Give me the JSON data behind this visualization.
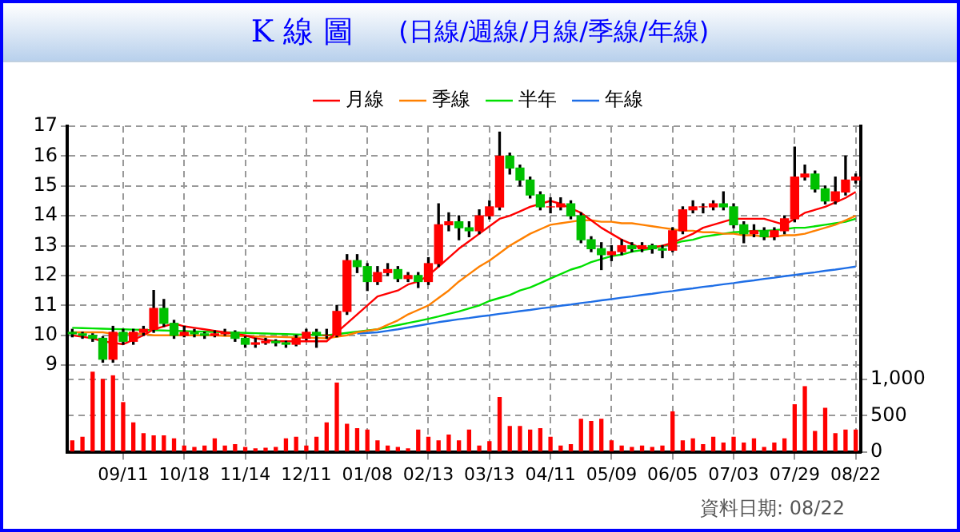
{
  "chart_data": {
    "type": "candlestick",
    "title": "K 線 圖",
    "subtitle": "(日線/週線/月線/季線/年線)",
    "categories": [
      null,
      null,
      null,
      null,
      null,
      "09/11",
      null,
      null,
      null,
      null,
      null,
      "10/18",
      null,
      null,
      null,
      null,
      null,
      "11/14",
      null,
      null,
      null,
      null,
      null,
      "12/11",
      null,
      null,
      null,
      null,
      null,
      "01/08",
      null,
      null,
      null,
      null,
      null,
      "02/13",
      null,
      null,
      null,
      null,
      null,
      "03/13",
      null,
      null,
      null,
      null,
      null,
      "04/11",
      null,
      null,
      null,
      null,
      null,
      "05/09",
      null,
      null,
      null,
      null,
      null,
      "06/05",
      null,
      null,
      null,
      null,
      null,
      "07/03",
      null,
      null,
      null,
      null,
      null,
      "07/29",
      null,
      null,
      null,
      null,
      null,
      "08/22"
    ],
    "ohlc": [
      [
        10.1,
        10.2,
        9.95,
        10.05
      ],
      [
        10.05,
        10.1,
        9.9,
        10.0
      ],
      [
        10.0,
        10.05,
        9.8,
        9.9
      ],
      [
        9.9,
        9.95,
        9.1,
        9.2
      ],
      [
        9.2,
        10.3,
        9.1,
        10.1
      ],
      [
        10.1,
        10.2,
        9.7,
        9.8
      ],
      [
        9.8,
        10.2,
        9.7,
        10.1
      ],
      [
        10.1,
        10.3,
        10.0,
        10.2
      ],
      [
        10.2,
        11.5,
        10.1,
        10.9
      ],
      [
        10.9,
        11.2,
        10.3,
        10.4
      ],
      [
        10.4,
        10.5,
        9.9,
        10.0
      ],
      [
        10.0,
        10.3,
        9.95,
        10.1
      ],
      [
        10.1,
        10.2,
        9.95,
        10.05
      ],
      [
        10.05,
        10.1,
        9.9,
        10.0
      ],
      [
        10.0,
        10.15,
        9.95,
        10.05
      ],
      [
        10.05,
        10.2,
        10.0,
        10.1
      ],
      [
        10.1,
        10.15,
        9.8,
        9.9
      ],
      [
        9.9,
        9.95,
        9.6,
        9.7
      ],
      [
        9.7,
        9.9,
        9.6,
        9.75
      ],
      [
        9.75,
        9.9,
        9.7,
        9.8
      ],
      [
        9.8,
        9.85,
        9.65,
        9.75
      ],
      [
        9.75,
        9.8,
        9.6,
        9.7
      ],
      [
        9.7,
        10.0,
        9.65,
        9.9
      ],
      [
        9.9,
        10.2,
        9.85,
        10.1
      ],
      [
        10.1,
        10.2,
        9.6,
        10.0
      ],
      [
        10.0,
        10.2,
        9.9,
        10.0
      ],
      [
        10.0,
        11.0,
        9.95,
        10.8
      ],
      [
        10.8,
        12.7,
        10.7,
        12.5
      ],
      [
        12.5,
        12.7,
        12.1,
        12.3
      ],
      [
        12.3,
        12.4,
        11.5,
        11.8
      ],
      [
        11.8,
        12.3,
        11.7,
        12.1
      ],
      [
        12.1,
        12.4,
        12.0,
        12.2
      ],
      [
        12.2,
        12.3,
        11.8,
        11.9
      ],
      [
        11.9,
        12.1,
        11.8,
        12.0
      ],
      [
        12.0,
        12.1,
        11.6,
        11.8
      ],
      [
        11.8,
        12.6,
        11.7,
        12.4
      ],
      [
        12.4,
        14.4,
        12.3,
        13.7
      ],
      [
        13.7,
        14.1,
        13.5,
        13.8
      ],
      [
        13.8,
        14.0,
        13.2,
        13.6
      ],
      [
        13.6,
        13.8,
        13.3,
        13.5
      ],
      [
        13.5,
        14.2,
        13.4,
        14.0
      ],
      [
        14.0,
        14.5,
        13.9,
        14.3
      ],
      [
        14.3,
        16.8,
        14.2,
        16.0
      ],
      [
        16.0,
        16.1,
        15.4,
        15.6
      ],
      [
        15.6,
        15.7,
        15.0,
        15.2
      ],
      [
        15.2,
        15.3,
        14.6,
        14.7
      ],
      [
        14.7,
        14.8,
        14.2,
        14.3
      ],
      [
        14.3,
        14.6,
        14.1,
        14.3
      ],
      [
        14.3,
        14.6,
        14.2,
        14.4
      ],
      [
        14.4,
        14.5,
        13.9,
        14.0
      ],
      [
        14.0,
        14.1,
        13.1,
        13.2
      ],
      [
        13.2,
        13.3,
        12.8,
        12.9
      ],
      [
        12.9,
        13.1,
        12.2,
        12.7
      ],
      [
        12.7,
        13.0,
        12.5,
        12.8
      ],
      [
        12.8,
        13.2,
        12.7,
        13.0
      ],
      [
        13.0,
        13.1,
        12.8,
        12.9
      ],
      [
        12.9,
        13.1,
        12.8,
        13.0
      ],
      [
        13.0,
        13.05,
        12.75,
        12.9
      ],
      [
        12.9,
        13.0,
        12.6,
        12.85
      ],
      [
        12.85,
        13.6,
        12.8,
        13.5
      ],
      [
        13.5,
        14.3,
        13.4,
        14.2
      ],
      [
        14.2,
        14.5,
        14.1,
        14.3
      ],
      [
        14.3,
        14.4,
        14.1,
        14.3
      ],
      [
        14.3,
        14.5,
        14.2,
        14.4
      ],
      [
        14.4,
        14.8,
        14.2,
        14.3
      ],
      [
        14.3,
        14.4,
        13.6,
        13.7
      ],
      [
        13.7,
        13.8,
        13.1,
        13.4
      ],
      [
        13.4,
        13.7,
        13.3,
        13.5
      ],
      [
        13.5,
        13.6,
        13.2,
        13.3
      ],
      [
        13.3,
        13.6,
        13.2,
        13.5
      ],
      [
        13.5,
        14.0,
        13.4,
        13.9
      ],
      [
        13.9,
        16.3,
        13.8,
        15.3
      ],
      [
        15.3,
        15.7,
        15.2,
        15.4
      ],
      [
        15.4,
        15.5,
        14.8,
        14.9
      ],
      [
        14.9,
        15.0,
        14.4,
        14.5
      ],
      [
        14.5,
        15.3,
        14.4,
        14.8
      ],
      [
        14.8,
        16.0,
        14.7,
        15.2
      ],
      [
        15.2,
        15.4,
        15.1,
        15.3
      ]
    ],
    "colors": [
      "#00c000",
      "#00c000",
      "#00c000",
      "#00c000",
      "#ff0000",
      "#00c000",
      "#ff0000",
      "#ff0000",
      "#ff0000",
      "#00c000",
      "#00c000",
      "#ff0000",
      "#00c000",
      "#00c000",
      "#ff0000",
      "#ff0000",
      "#00c000",
      "#00c000",
      "#ff0000",
      "#ff0000",
      "#00c000",
      "#00c000",
      "#ff0000",
      "#ff0000",
      "#00c000",
      "#ff0000",
      "#ff0000",
      "#ff0000",
      "#00c000",
      "#00c000",
      "#ff0000",
      "#ff0000",
      "#00c000",
      "#ff0000",
      "#00c000",
      "#ff0000",
      "#ff0000",
      "#ff0000",
      "#00c000",
      "#00c000",
      "#ff0000",
      "#ff0000",
      "#ff0000",
      "#00c000",
      "#00c000",
      "#00c000",
      "#00c000",
      "#ff0000",
      "#ff0000",
      "#00c000",
      "#00c000",
      "#00c000",
      "#00c000",
      "#ff0000",
      "#ff0000",
      "#00c000",
      "#ff0000",
      "#00c000",
      "#00c000",
      "#ff0000",
      "#ff0000",
      "#ff0000",
      "#ff0000",
      "#ff0000",
      "#00c000",
      "#00c000",
      "#00c000",
      "#ff0000",
      "#00c000",
      "#ff0000",
      "#ff0000",
      "#ff0000",
      "#ff0000",
      "#00c000",
      "#00c000",
      "#ff0000",
      "#ff0000",
      "#ff0000"
    ],
    "series": [
      {
        "type": "line",
        "name": "月線",
        "color": "#ff0000",
        "values": [
          10.0,
          9.95,
          9.9,
          9.8,
          9.75,
          9.7,
          9.85,
          10.0,
          10.2,
          10.3,
          10.4,
          10.3,
          10.25,
          10.2,
          10.15,
          10.1,
          10.05,
          10.0,
          9.9,
          9.85,
          9.8,
          9.8,
          9.8,
          9.8,
          9.8,
          9.8,
          10.1,
          10.4,
          10.7,
          11.0,
          11.3,
          11.4,
          11.5,
          11.7,
          11.8,
          12.0,
          12.3,
          12.6,
          12.9,
          13.15,
          13.4,
          13.65,
          13.9,
          14.0,
          14.15,
          14.3,
          14.4,
          14.5,
          14.4,
          14.25,
          14.1,
          13.85,
          13.6,
          13.4,
          13.2,
          13.05,
          12.9,
          12.95,
          13.0,
          13.1,
          13.25,
          13.4,
          13.6,
          13.7,
          13.8,
          13.9,
          13.9,
          13.9,
          13.9,
          13.8,
          13.7,
          13.9,
          14.1,
          14.2,
          14.3,
          14.45,
          14.6,
          14.8
        ]
      },
      {
        "type": "line",
        "name": "季線",
        "color": "#ff8000",
        "values": [
          10.1,
          10.1,
          10.1,
          10.1,
          10.05,
          10.05,
          10.05,
          10.05,
          10.0,
          10.0,
          10.0,
          10.0,
          10.0,
          10.0,
          10.0,
          9.98,
          9.98,
          9.97,
          9.96,
          9.95,
          9.95,
          9.94,
          9.93,
          9.92,
          9.91,
          9.9,
          9.95,
          10.0,
          10.1,
          10.15,
          10.2,
          10.35,
          10.5,
          10.7,
          10.85,
          11.0,
          11.25,
          11.5,
          11.8,
          12.05,
          12.3,
          12.5,
          12.75,
          13.0,
          13.2,
          13.4,
          13.55,
          13.7,
          13.75,
          13.8,
          13.85,
          13.85,
          13.8,
          13.8,
          13.75,
          13.75,
          13.7,
          13.65,
          13.6,
          13.55,
          13.5,
          13.5,
          13.45,
          13.45,
          13.4,
          13.4,
          13.35,
          13.35,
          13.3,
          13.3,
          13.35,
          13.35,
          13.4,
          13.5,
          13.6,
          13.7,
          13.85,
          14.0
        ]
      },
      {
        "type": "line",
        "name": "半年",
        "color": "#00e000",
        "values": [
          10.25,
          10.24,
          10.23,
          10.22,
          10.21,
          10.2,
          10.19,
          10.18,
          10.17,
          10.16,
          10.15,
          10.14,
          10.13,
          10.12,
          10.11,
          10.1,
          10.09,
          10.08,
          10.07,
          10.06,
          10.05,
          10.04,
          10.03,
          10.02,
          10.01,
          10.0,
          10.04,
          10.08,
          10.12,
          10.16,
          10.2,
          10.27,
          10.34,
          10.41,
          10.48,
          10.55,
          10.63,
          10.72,
          10.8,
          10.9,
          11.0,
          11.15,
          11.25,
          11.35,
          11.5,
          11.6,
          11.75,
          11.9,
          12.05,
          12.2,
          12.3,
          12.45,
          12.55,
          12.65,
          12.7,
          12.8,
          12.85,
          12.9,
          13.0,
          13.05,
          13.15,
          13.2,
          13.3,
          13.35,
          13.4,
          13.45,
          13.47,
          13.5,
          13.5,
          13.52,
          13.55,
          13.6,
          13.6,
          13.65,
          13.7,
          13.75,
          13.8,
          13.9
        ]
      },
      {
        "type": "line",
        "name": "年線",
        "color": "#1e6ee6",
        "values": [
          null,
          null,
          null,
          null,
          null,
          null,
          null,
          null,
          null,
          null,
          null,
          null,
          null,
          null,
          null,
          null,
          null,
          null,
          null,
          null,
          null,
          null,
          null,
          null,
          null,
          null,
          null,
          null,
          10.06,
          10.08,
          10.1,
          10.15,
          10.2,
          10.26,
          10.32,
          10.38,
          10.44,
          10.49,
          10.54,
          10.58,
          10.63,
          10.67,
          10.72,
          10.76,
          10.81,
          10.85,
          10.9,
          10.94,
          10.99,
          11.03,
          11.08,
          11.12,
          11.17,
          11.21,
          11.26,
          11.3,
          11.35,
          11.39,
          11.44,
          11.48,
          11.53,
          11.57,
          11.62,
          11.66,
          11.71,
          11.75,
          11.8,
          11.84,
          11.89,
          11.93,
          11.98,
          12.02,
          12.07,
          12.11,
          12.16,
          12.2,
          12.25,
          12.3
        ]
      },
      {
        "type": "bar",
        "axis": "y2",
        "color": "#ff0000",
        "values": [
          150,
          200,
          1100,
          1000,
          1050,
          680,
          400,
          250,
          220,
          220,
          180,
          80,
          60,
          80,
          180,
          80,
          100,
          60,
          40,
          50,
          60,
          180,
          200,
          80,
          200,
          400,
          950,
          380,
          320,
          300,
          150,
          80,
          60,
          40,
          300,
          200,
          150,
          230,
          150,
          300,
          80,
          140,
          750,
          350,
          350,
          300,
          320,
          200,
          80,
          100,
          450,
          420,
          450,
          150,
          80,
          60,
          80,
          60,
          80,
          550,
          150,
          180,
          100,
          200,
          120,
          200,
          120,
          180,
          60,
          120,
          180,
          650,
          900,
          280,
          600,
          250,
          300,
          300
        ]
      }
    ],
    "ylim": [
      6.1,
      17
    ],
    "yticks": [
      9,
      10,
      11,
      12,
      13,
      14,
      15,
      16,
      17
    ],
    "y2lim": [
      0,
      4500
    ],
    "y2ticks": [
      0,
      500,
      {
        "value": 1000,
        "label": "1,000"
      }
    ],
    "grid": true,
    "legend": "top",
    "marker": "none",
    "annotations": [
      "資料日期: 08/22"
    ]
  }
}
